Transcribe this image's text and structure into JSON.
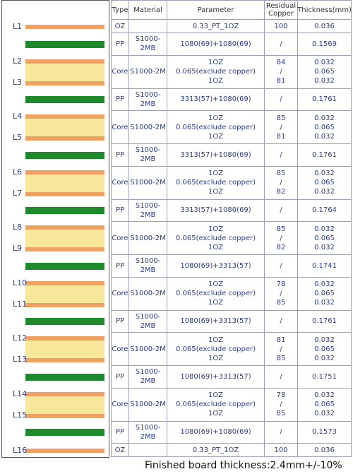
{
  "header": {
    "type": "Type",
    "material": "Material",
    "parameter": "Parameter",
    "residual_copper": "Residual Copper",
    "thickness": "Thickness(mm)"
  },
  "rows": [
    {
      "layers": [
        "L1"
      ],
      "type": "OZ",
      "parameter": [
        "0.33_PT_1OZ"
      ],
      "copper": [
        "100"
      ],
      "thickness": [
        "0.036"
      ]
    },
    {
      "type": "PP",
      "material": "S1000-2MB",
      "parameter": [
        "1080(69)+1080(69)"
      ],
      "copper": [
        "/"
      ],
      "thickness": [
        "0.1569"
      ]
    },
    {
      "layers": [
        "L2",
        "L3"
      ],
      "type": "Core",
      "material": "S1000-2M",
      "parameter": [
        "1OZ",
        "0.065(exclude copper)",
        "1OZ"
      ],
      "copper": [
        "84",
        "/",
        "81"
      ],
      "thickness": [
        "0.032",
        "0.065",
        "0.032"
      ]
    },
    {
      "type": "PP",
      "material": "S1000-2MB",
      "parameter": [
        "3313(57)+1080(69)"
      ],
      "copper": [
        "/"
      ],
      "thickness": [
        "0.1761"
      ]
    },
    {
      "layers": [
        "L4",
        "L5"
      ],
      "type": "Core",
      "material": "S1000-2M",
      "parameter": [
        "1OZ",
        "0.065(exclude copper)",
        "1OZ"
      ],
      "copper": [
        "85",
        "/",
        "81"
      ],
      "thickness": [
        "0.032",
        "0.065",
        "0.032"
      ]
    },
    {
      "type": "PP",
      "material": "S1000-2MB",
      "parameter": [
        "3313(57)+1080(69)"
      ],
      "copper": [
        "/"
      ],
      "thickness": [
        "0.1761"
      ]
    },
    {
      "layers": [
        "L6",
        "L7"
      ],
      "type": "Core",
      "material": "S1000-2M",
      "parameter": [
        "1OZ",
        "0.065(exclude copper)",
        "1OZ"
      ],
      "copper": [
        "85",
        "/",
        "82"
      ],
      "thickness": [
        "0.032",
        "0.065",
        "0.032"
      ]
    },
    {
      "type": "PP",
      "material": "S1000-2MB",
      "parameter": [
        "3313(57)+1080(69)"
      ],
      "copper": [
        "/"
      ],
      "thickness": [
        "0.1764"
      ]
    },
    {
      "layers": [
        "L8",
        "L9"
      ],
      "type": "Core",
      "material": "S1000-2M",
      "parameter": [
        "1OZ",
        "0.065(exclude copper)",
        "1OZ"
      ],
      "copper": [
        "85",
        "/",
        "82"
      ],
      "thickness": [
        "0.032",
        "0.065",
        "0.032"
      ]
    },
    {
      "type": "PP",
      "material": "S1000-2MB",
      "parameter": [
        "1080(69)+3313(57)"
      ],
      "copper": [
        "/"
      ],
      "thickness": [
        "0.1741"
      ]
    },
    {
      "layers": [
        "L10",
        "L11"
      ],
      "type": "Core",
      "material": "S1000-2M",
      "parameter": [
        "1OZ",
        "0.065(exclude copper)",
        "1OZ"
      ],
      "copper": [
        "78",
        "/",
        "85"
      ],
      "thickness": [
        "0.032",
        "0.065",
        "0.032"
      ]
    },
    {
      "type": "PP",
      "material": "S1000-2MB",
      "parameter": [
        "1080(69)+3313(57)"
      ],
      "copper": [
        "/"
      ],
      "thickness": [
        "0.1761"
      ]
    },
    {
      "layers": [
        "L12",
        "L13"
      ],
      "type": "Core",
      "material": "S1000-2M",
      "parameter": [
        "1OZ",
        "0.065(exclude copper)",
        "1OZ"
      ],
      "copper": [
        "81",
        "/",
        "85"
      ],
      "thickness": [
        "0.032",
        "0.065",
        "0.032"
      ]
    },
    {
      "type": "PP",
      "material": "S1000-2MB",
      "parameter": [
        "1080(69)+3313(57)"
      ],
      "copper": [
        "/"
      ],
      "thickness": [
        "0.1751"
      ]
    },
    {
      "layers": [
        "L14",
        "L15"
      ],
      "type": "Core",
      "material": "S1000-2M",
      "parameter": [
        "1OZ",
        "0.065(exclude copper)",
        "1OZ"
      ],
      "copper": [
        "78",
        "/",
        "85"
      ],
      "thickness": [
        "0.032",
        "0.065",
        "0.032"
      ]
    },
    {
      "type": "PP",
      "material": "S1000-2MB",
      "parameter": [
        "1080(69)+1080(69)"
      ],
      "copper": [
        "/"
      ],
      "thickness": [
        "0.1573"
      ]
    },
    {
      "layers": [
        "L16"
      ],
      "type": "OZ",
      "parameter": [
        "0.33_PT_1OZ"
      ],
      "copper": [
        "100"
      ],
      "thickness": [
        "0.036"
      ]
    }
  ],
  "footer": "Finished board thickness:2.4mm+/-10%"
}
